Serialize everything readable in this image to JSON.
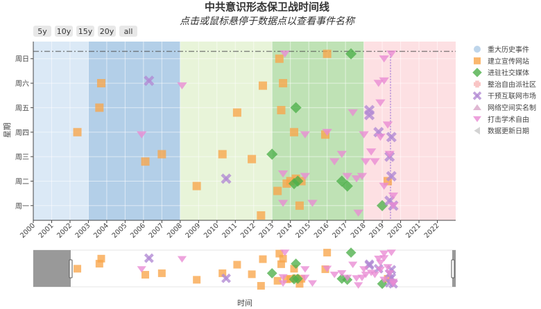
{
  "title": "中共意识形态保卫战时间线",
  "subtitle": "点击或鼠标悬停于数据点以查看事件名称",
  "range_buttons": [
    "5y",
    "10y",
    "15y",
    "20y",
    "all"
  ],
  "colors": {
    "period_light_blue": "#dbe9f6",
    "period_blue": "#aecbe6",
    "period_green_light": "#e7f4d8",
    "period_green": "#b8dfb0",
    "period_pink": "#fbdde0",
    "gray_rangeslider": "#999999"
  },
  "chart_data": {
    "type": "scatter",
    "xlabel": "时间",
    "ylabel": "星期",
    "x_ticks": [
      "2000",
      "2001",
      "2002",
      "2003",
      "2004",
      "2005",
      "2006",
      "2007",
      "2008",
      "2009",
      "2010",
      "2011",
      "2012",
      "2013",
      "2014",
      "2015",
      "2016",
      "2017",
      "2018",
      "2019",
      "2020",
      "2021",
      "2022"
    ],
    "y_ticks": [
      "周一",
      "周二",
      "周三",
      "周四",
      "周五",
      "周六",
      "周日"
    ],
    "xlim": [
      2000.0,
      2023.0
    ],
    "ylim": [
      0.4,
      7.7
    ],
    "periods": [
      {
        "start": 2000.0,
        "end": 2003.0,
        "color": "#dbe9f6"
      },
      {
        "start": 2003.0,
        "end": 2008.0,
        "color": "#b3cfe8"
      },
      {
        "start": 2008.0,
        "end": 2013.0,
        "color": "#e8f4d9"
      },
      {
        "start": 2013.0,
        "end": 2018.0,
        "color": "#bfe2b5"
      },
      {
        "start": 2018.0,
        "end": 2023.0,
        "color": "#fde0e3"
      }
    ],
    "hline": 7.3,
    "vline": 2019.45,
    "legend": [
      {
        "name": "重大历史事件",
        "symbol": "circle",
        "color": "#aecbe6"
      },
      {
        "name": "建立宣传网站",
        "symbol": "square",
        "color": "#f9a54a"
      },
      {
        "name": "进驻社交媒体",
        "symbol": "diamond",
        "color": "#4daf4a"
      },
      {
        "name": "整治自由派社区",
        "symbol": "cross",
        "color": "#f7b6b6"
      },
      {
        "name": "干预互联网市场",
        "symbol": "x",
        "color": "#b189d3"
      },
      {
        "name": "网络空间实名制",
        "symbol": "triangle-up",
        "color": "#d8a6c8"
      },
      {
        "name": "打击学术自由",
        "symbol": "triangle-down",
        "color": "#e98ad3"
      },
      {
        "name": "数据更新日期",
        "symbol": "triangle-left",
        "color": "#c8c8c8"
      }
    ],
    "series": [
      {
        "name": "建立宣传网站",
        "symbol": "square",
        "color": "#f9a54a",
        "points": [
          [
            2002.4,
            4
          ],
          [
            2003.7,
            6
          ],
          [
            2003.6,
            5
          ],
          [
            2006.1,
            2.8
          ],
          [
            2007.0,
            3.1
          ],
          [
            2008.9,
            1.8
          ],
          [
            2010.3,
            3.1
          ],
          [
            2011.1,
            4.8
          ],
          [
            2011.9,
            2.9
          ],
          [
            2012.4,
            0.6
          ],
          [
            2012.5,
            5.9
          ],
          [
            2013.4,
            7.0
          ],
          [
            2013.5,
            4.9
          ],
          [
            2013.6,
            6.0
          ],
          [
            2013.8,
            1.9
          ],
          [
            2013.3,
            1.6
          ],
          [
            2014.2,
            4.0
          ],
          [
            2014.0,
            2.0
          ],
          [
            2014.3,
            2.1
          ],
          [
            2014.6,
            2.0
          ],
          [
            2014.5,
            1.0
          ],
          [
            2015.9,
            3.9
          ],
          [
            2016.0,
            7.2
          ],
          [
            2019.3,
            2.0
          ]
        ]
      },
      {
        "name": "进驻社交媒体",
        "symbol": "diamond",
        "color": "#4daf4a",
        "points": [
          [
            2013.0,
            3.1
          ],
          [
            2014.3,
            5.0
          ],
          [
            2014.2,
            1.9
          ],
          [
            2014.4,
            2.0
          ],
          [
            2016.8,
            2.0
          ],
          [
            2017.1,
            1.8
          ],
          [
            2017.3,
            7.2
          ],
          [
            2019.0,
            1.0
          ]
        ]
      },
      {
        "name": "干预互联网市场",
        "symbol": "x",
        "color": "#b189d3",
        "points": [
          [
            2006.3,
            6.1
          ],
          [
            2010.5,
            2.1
          ],
          [
            2018.3,
            4.9
          ],
          [
            2018.3,
            4.7
          ],
          [
            2018.8,
            4.0
          ],
          [
            2019.5,
            3.8
          ],
          [
            2019.4,
            3.0
          ],
          [
            2019.5,
            2.2
          ],
          [
            2019.4,
            1.2
          ],
          [
            2019.6,
            1.0
          ]
        ]
      },
      {
        "name": "打击学术自由",
        "symbol": "triangle-down",
        "color": "#e98ad3",
        "points": [
          [
            2005.9,
            3.9
          ],
          [
            2008.1,
            5.9
          ],
          [
            2013.7,
            7.2
          ],
          [
            2013.6,
            1.1
          ],
          [
            2013.6,
            2.3
          ],
          [
            2014.8,
            2.2
          ],
          [
            2014.8,
            3.9
          ],
          [
            2015.2,
            1.1
          ],
          [
            2016.0,
            4.0
          ],
          [
            2016.4,
            2.8
          ],
          [
            2016.8,
            3.1
          ],
          [
            2017.1,
            2.2
          ],
          [
            2017.4,
            4.8
          ],
          [
            2017.6,
            2.1
          ],
          [
            2017.9,
            2.2
          ],
          [
            2018.0,
            3.9
          ],
          [
            2018.1,
            2.8
          ],
          [
            2018.4,
            3.2
          ],
          [
            2018.6,
            2.8
          ],
          [
            2018.8,
            6.0
          ],
          [
            2018.9,
            5.2
          ],
          [
            2018.9,
            3.8
          ],
          [
            2019.1,
            6.1
          ],
          [
            2019.1,
            1.8
          ],
          [
            2019.1,
            7.0
          ],
          [
            2019.3,
            4.3
          ],
          [
            2019.4,
            3.1
          ],
          [
            2019.5,
            7.2
          ],
          [
            2019.6,
            1.4
          ],
          [
            2019.6,
            1.0
          ],
          [
            2017.7,
            0.7
          ]
        ]
      }
    ]
  }
}
